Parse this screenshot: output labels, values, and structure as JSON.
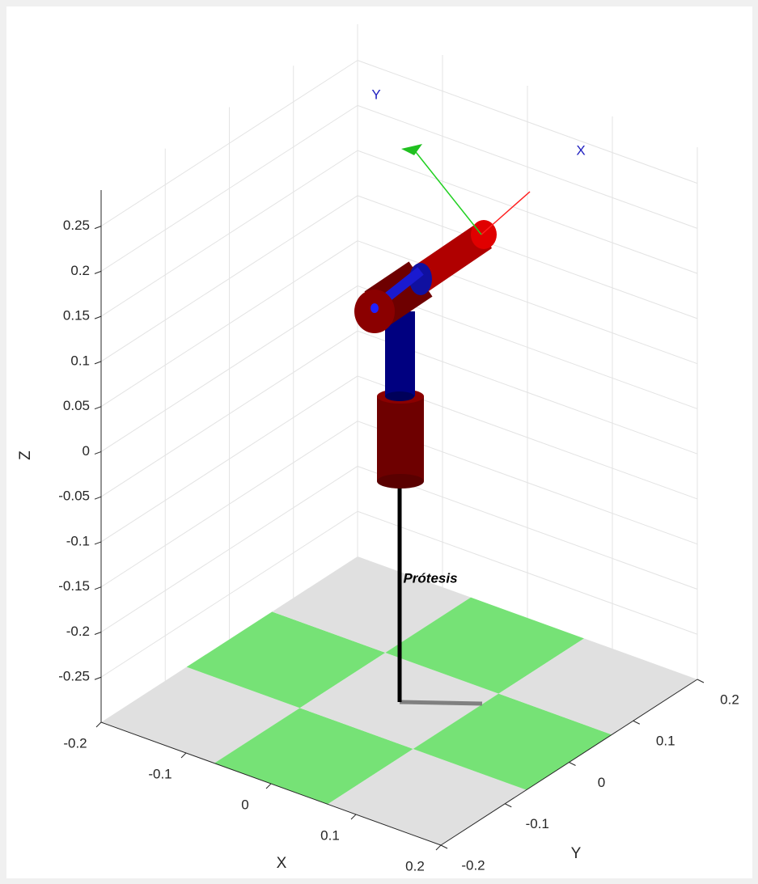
{
  "chart_data": {
    "type": "robot3d",
    "xlabel": "X",
    "ylabel": "Y",
    "zlabel": "Z",
    "xlim": [
      -0.2,
      0.2
    ],
    "ylim": [
      -0.2,
      0.2
    ],
    "zlim": [
      -0.3,
      0.29
    ],
    "xticks": [
      -0.2,
      -0.1,
      0,
      0.1,
      0.2
    ],
    "yticks": [
      -0.2,
      -0.1,
      0,
      0.1,
      0.2
    ],
    "zticks": [
      -0.25,
      -0.2,
      -0.15,
      -0.1,
      -0.05,
      0,
      0.05,
      0.1,
      0.15,
      0.2,
      0.25
    ],
    "grid": true,
    "annotations": [
      "Y",
      "X",
      "Prótesis"
    ]
  }
}
